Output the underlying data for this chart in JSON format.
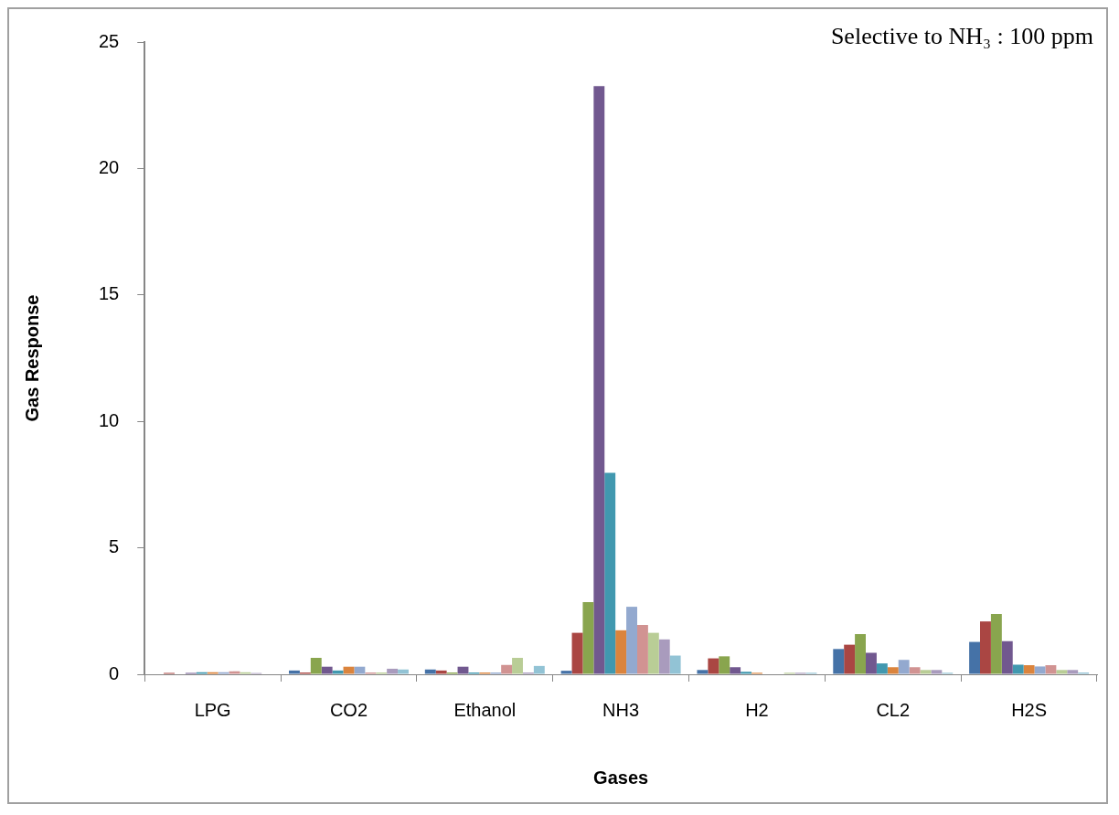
{
  "chart_data": {
    "type": "bar",
    "xlabel": "Gases",
    "ylabel": "Gas Response",
    "annotations": [
      "Selective to NH₃ : 100 ppm"
    ],
    "categories": [
      "LPG",
      "CO2",
      "Ethanol",
      "NH3",
      "H2",
      "CL2",
      "H2S"
    ],
    "ylim": [
      0,
      25
    ],
    "yticks": [
      0,
      5,
      10,
      15,
      20,
      25
    ],
    "grid": false,
    "legend": false,
    "series": [
      {
        "color": "#4572a7",
        "values": [
          0,
          0.15,
          0.19,
          0.14,
          0.17,
          1.0,
          1.28
        ]
      },
      {
        "color": "#aa4643",
        "values": [
          0.05,
          0.07,
          0.15,
          1.64,
          0.63,
          1.17,
          2.09
        ]
      },
      {
        "color": "#89a54e",
        "values": [
          0,
          0.65,
          0.07,
          2.85,
          0.71,
          1.59,
          2.38
        ]
      },
      {
        "color": "#71588f",
        "values": [
          0.05,
          0.3,
          0.3,
          23.26,
          0.28,
          0.85,
          1.31
        ]
      },
      {
        "color": "#4198af",
        "values": [
          0.08,
          0.15,
          0.07,
          7.97,
          0.1,
          0.43,
          0.38
        ]
      },
      {
        "color": "#db843d",
        "values": [
          0.08,
          0.3,
          0.07,
          1.74,
          0.06,
          0.28,
          0.36
        ]
      },
      {
        "color": "#93a9cf",
        "values": [
          0.08,
          0.3,
          0.07,
          2.67,
          0,
          0.57,
          0.31
        ]
      },
      {
        "color": "#d19392",
        "values": [
          0.12,
          0.07,
          0.37,
          1.95,
          0,
          0.28,
          0.36
        ]
      },
      {
        "color": "#b9cd96",
        "values": [
          0.08,
          0.07,
          0.65,
          1.64,
          0.06,
          0.17,
          0.17
        ]
      },
      {
        "color": "#a99bbd",
        "values": [
          0.05,
          0.22,
          0.07,
          1.38,
          0.06,
          0.17,
          0.17
        ]
      },
      {
        "color": "#92c3d5",
        "values": [
          0,
          0.19,
          0.33,
          0.74,
          0.06,
          0.06,
          0.07
        ]
      }
    ]
  }
}
